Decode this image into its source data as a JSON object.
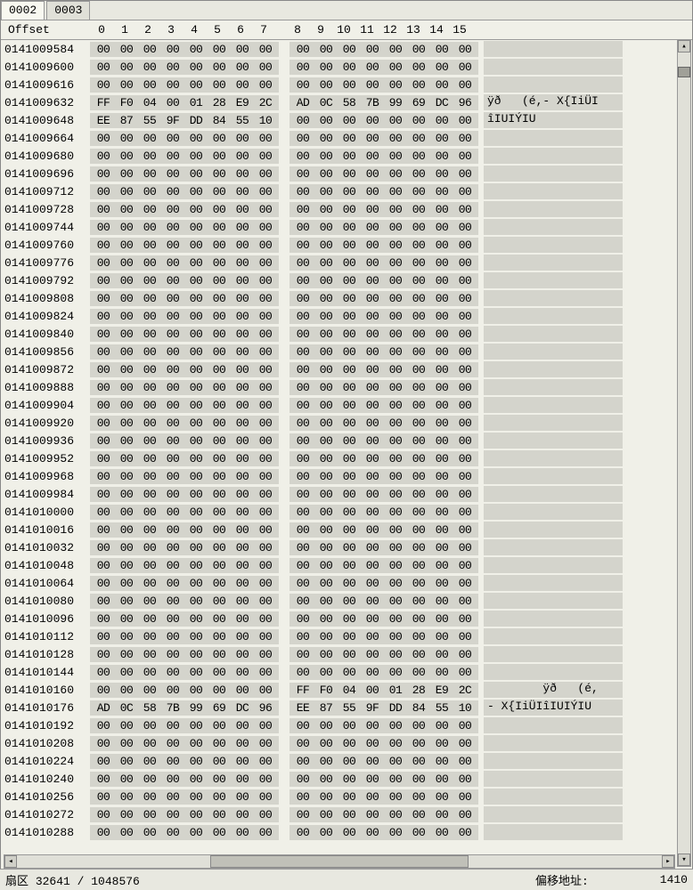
{
  "tabs": [
    {
      "label": "0002",
      "active": true
    },
    {
      "label": "0003",
      "active": false
    }
  ],
  "offset_header": "Offset",
  "column_headers": [
    "0",
    "1",
    "2",
    "3",
    "4",
    "5",
    "6",
    "7",
    "8",
    "9",
    "10",
    "11",
    "12",
    "13",
    "14",
    "15"
  ],
  "colors": {
    "background": "#f0f0e8",
    "hex_bg": "#d4d4cc",
    "text": "#000000",
    "border": "#999999"
  },
  "rows": [
    {
      "offset": "0141009584",
      "bytes": [
        "00",
        "00",
        "00",
        "00",
        "00",
        "00",
        "00",
        "00",
        "00",
        "00",
        "00",
        "00",
        "00",
        "00",
        "00",
        "00"
      ],
      "ascii": ""
    },
    {
      "offset": "0141009600",
      "bytes": [
        "00",
        "00",
        "00",
        "00",
        "00",
        "00",
        "00",
        "00",
        "00",
        "00",
        "00",
        "00",
        "00",
        "00",
        "00",
        "00"
      ],
      "ascii": ""
    },
    {
      "offset": "0141009616",
      "bytes": [
        "00",
        "00",
        "00",
        "00",
        "00",
        "00",
        "00",
        "00",
        "00",
        "00",
        "00",
        "00",
        "00",
        "00",
        "00",
        "00"
      ],
      "ascii": ""
    },
    {
      "offset": "0141009632",
      "bytes": [
        "FF",
        "F0",
        "04",
        "00",
        "01",
        "28",
        "E9",
        "2C",
        "AD",
        "0C",
        "58",
        "7B",
        "99",
        "69",
        "DC",
        "96"
      ],
      "ascii": "ÿð   (é,- X{IiÜI"
    },
    {
      "offset": "0141009648",
      "bytes": [
        "EE",
        "87",
        "55",
        "9F",
        "DD",
        "84",
        "55",
        "10",
        "00",
        "00",
        "00",
        "00",
        "00",
        "00",
        "00",
        "00"
      ],
      "ascii": "îIUIÝIU"
    },
    {
      "offset": "0141009664",
      "bytes": [
        "00",
        "00",
        "00",
        "00",
        "00",
        "00",
        "00",
        "00",
        "00",
        "00",
        "00",
        "00",
        "00",
        "00",
        "00",
        "00"
      ],
      "ascii": ""
    },
    {
      "offset": "0141009680",
      "bytes": [
        "00",
        "00",
        "00",
        "00",
        "00",
        "00",
        "00",
        "00",
        "00",
        "00",
        "00",
        "00",
        "00",
        "00",
        "00",
        "00"
      ],
      "ascii": ""
    },
    {
      "offset": "0141009696",
      "bytes": [
        "00",
        "00",
        "00",
        "00",
        "00",
        "00",
        "00",
        "00",
        "00",
        "00",
        "00",
        "00",
        "00",
        "00",
        "00",
        "00"
      ],
      "ascii": ""
    },
    {
      "offset": "0141009712",
      "bytes": [
        "00",
        "00",
        "00",
        "00",
        "00",
        "00",
        "00",
        "00",
        "00",
        "00",
        "00",
        "00",
        "00",
        "00",
        "00",
        "00"
      ],
      "ascii": ""
    },
    {
      "offset": "0141009728",
      "bytes": [
        "00",
        "00",
        "00",
        "00",
        "00",
        "00",
        "00",
        "00",
        "00",
        "00",
        "00",
        "00",
        "00",
        "00",
        "00",
        "00"
      ],
      "ascii": ""
    },
    {
      "offset": "0141009744",
      "bytes": [
        "00",
        "00",
        "00",
        "00",
        "00",
        "00",
        "00",
        "00",
        "00",
        "00",
        "00",
        "00",
        "00",
        "00",
        "00",
        "00"
      ],
      "ascii": ""
    },
    {
      "offset": "0141009760",
      "bytes": [
        "00",
        "00",
        "00",
        "00",
        "00",
        "00",
        "00",
        "00",
        "00",
        "00",
        "00",
        "00",
        "00",
        "00",
        "00",
        "00"
      ],
      "ascii": ""
    },
    {
      "offset": "0141009776",
      "bytes": [
        "00",
        "00",
        "00",
        "00",
        "00",
        "00",
        "00",
        "00",
        "00",
        "00",
        "00",
        "00",
        "00",
        "00",
        "00",
        "00"
      ],
      "ascii": ""
    },
    {
      "offset": "0141009792",
      "bytes": [
        "00",
        "00",
        "00",
        "00",
        "00",
        "00",
        "00",
        "00",
        "00",
        "00",
        "00",
        "00",
        "00",
        "00",
        "00",
        "00"
      ],
      "ascii": ""
    },
    {
      "offset": "0141009808",
      "bytes": [
        "00",
        "00",
        "00",
        "00",
        "00",
        "00",
        "00",
        "00",
        "00",
        "00",
        "00",
        "00",
        "00",
        "00",
        "00",
        "00"
      ],
      "ascii": ""
    },
    {
      "offset": "0141009824",
      "bytes": [
        "00",
        "00",
        "00",
        "00",
        "00",
        "00",
        "00",
        "00",
        "00",
        "00",
        "00",
        "00",
        "00",
        "00",
        "00",
        "00"
      ],
      "ascii": ""
    },
    {
      "offset": "0141009840",
      "bytes": [
        "00",
        "00",
        "00",
        "00",
        "00",
        "00",
        "00",
        "00",
        "00",
        "00",
        "00",
        "00",
        "00",
        "00",
        "00",
        "00"
      ],
      "ascii": ""
    },
    {
      "offset": "0141009856",
      "bytes": [
        "00",
        "00",
        "00",
        "00",
        "00",
        "00",
        "00",
        "00",
        "00",
        "00",
        "00",
        "00",
        "00",
        "00",
        "00",
        "00"
      ],
      "ascii": ""
    },
    {
      "offset": "0141009872",
      "bytes": [
        "00",
        "00",
        "00",
        "00",
        "00",
        "00",
        "00",
        "00",
        "00",
        "00",
        "00",
        "00",
        "00",
        "00",
        "00",
        "00"
      ],
      "ascii": ""
    },
    {
      "offset": "0141009888",
      "bytes": [
        "00",
        "00",
        "00",
        "00",
        "00",
        "00",
        "00",
        "00",
        "00",
        "00",
        "00",
        "00",
        "00",
        "00",
        "00",
        "00"
      ],
      "ascii": ""
    },
    {
      "offset": "0141009904",
      "bytes": [
        "00",
        "00",
        "00",
        "00",
        "00",
        "00",
        "00",
        "00",
        "00",
        "00",
        "00",
        "00",
        "00",
        "00",
        "00",
        "00"
      ],
      "ascii": ""
    },
    {
      "offset": "0141009920",
      "bytes": [
        "00",
        "00",
        "00",
        "00",
        "00",
        "00",
        "00",
        "00",
        "00",
        "00",
        "00",
        "00",
        "00",
        "00",
        "00",
        "00"
      ],
      "ascii": ""
    },
    {
      "offset": "0141009936",
      "bytes": [
        "00",
        "00",
        "00",
        "00",
        "00",
        "00",
        "00",
        "00",
        "00",
        "00",
        "00",
        "00",
        "00",
        "00",
        "00",
        "00"
      ],
      "ascii": ""
    },
    {
      "offset": "0141009952",
      "bytes": [
        "00",
        "00",
        "00",
        "00",
        "00",
        "00",
        "00",
        "00",
        "00",
        "00",
        "00",
        "00",
        "00",
        "00",
        "00",
        "00"
      ],
      "ascii": ""
    },
    {
      "offset": "0141009968",
      "bytes": [
        "00",
        "00",
        "00",
        "00",
        "00",
        "00",
        "00",
        "00",
        "00",
        "00",
        "00",
        "00",
        "00",
        "00",
        "00",
        "00"
      ],
      "ascii": ""
    },
    {
      "offset": "0141009984",
      "bytes": [
        "00",
        "00",
        "00",
        "00",
        "00",
        "00",
        "00",
        "00",
        "00",
        "00",
        "00",
        "00",
        "00",
        "00",
        "00",
        "00"
      ],
      "ascii": ""
    },
    {
      "offset": "0141010000",
      "bytes": [
        "00",
        "00",
        "00",
        "00",
        "00",
        "00",
        "00",
        "00",
        "00",
        "00",
        "00",
        "00",
        "00",
        "00",
        "00",
        "00"
      ],
      "ascii": ""
    },
    {
      "offset": "0141010016",
      "bytes": [
        "00",
        "00",
        "00",
        "00",
        "00",
        "00",
        "00",
        "00",
        "00",
        "00",
        "00",
        "00",
        "00",
        "00",
        "00",
        "00"
      ],
      "ascii": ""
    },
    {
      "offset": "0141010032",
      "bytes": [
        "00",
        "00",
        "00",
        "00",
        "00",
        "00",
        "00",
        "00",
        "00",
        "00",
        "00",
        "00",
        "00",
        "00",
        "00",
        "00"
      ],
      "ascii": ""
    },
    {
      "offset": "0141010048",
      "bytes": [
        "00",
        "00",
        "00",
        "00",
        "00",
        "00",
        "00",
        "00",
        "00",
        "00",
        "00",
        "00",
        "00",
        "00",
        "00",
        "00"
      ],
      "ascii": ""
    },
    {
      "offset": "0141010064",
      "bytes": [
        "00",
        "00",
        "00",
        "00",
        "00",
        "00",
        "00",
        "00",
        "00",
        "00",
        "00",
        "00",
        "00",
        "00",
        "00",
        "00"
      ],
      "ascii": ""
    },
    {
      "offset": "0141010080",
      "bytes": [
        "00",
        "00",
        "00",
        "00",
        "00",
        "00",
        "00",
        "00",
        "00",
        "00",
        "00",
        "00",
        "00",
        "00",
        "00",
        "00"
      ],
      "ascii": ""
    },
    {
      "offset": "0141010096",
      "bytes": [
        "00",
        "00",
        "00",
        "00",
        "00",
        "00",
        "00",
        "00",
        "00",
        "00",
        "00",
        "00",
        "00",
        "00",
        "00",
        "00"
      ],
      "ascii": ""
    },
    {
      "offset": "0141010112",
      "bytes": [
        "00",
        "00",
        "00",
        "00",
        "00",
        "00",
        "00",
        "00",
        "00",
        "00",
        "00",
        "00",
        "00",
        "00",
        "00",
        "00"
      ],
      "ascii": ""
    },
    {
      "offset": "0141010128",
      "bytes": [
        "00",
        "00",
        "00",
        "00",
        "00",
        "00",
        "00",
        "00",
        "00",
        "00",
        "00",
        "00",
        "00",
        "00",
        "00",
        "00"
      ],
      "ascii": ""
    },
    {
      "offset": "0141010144",
      "bytes": [
        "00",
        "00",
        "00",
        "00",
        "00",
        "00",
        "00",
        "00",
        "00",
        "00",
        "00",
        "00",
        "00",
        "00",
        "00",
        "00"
      ],
      "ascii": ""
    },
    {
      "offset": "0141010160",
      "bytes": [
        "00",
        "00",
        "00",
        "00",
        "00",
        "00",
        "00",
        "00",
        "FF",
        "F0",
        "04",
        "00",
        "01",
        "28",
        "E9",
        "2C"
      ],
      "ascii": "        ÿð   (é,"
    },
    {
      "offset": "0141010176",
      "bytes": [
        "AD",
        "0C",
        "58",
        "7B",
        "99",
        "69",
        "DC",
        "96",
        "EE",
        "87",
        "55",
        "9F",
        "DD",
        "84",
        "55",
        "10"
      ],
      "ascii": "- X{IiÜIîIUIÝIU"
    },
    {
      "offset": "0141010192",
      "bytes": [
        "00",
        "00",
        "00",
        "00",
        "00",
        "00",
        "00",
        "00",
        "00",
        "00",
        "00",
        "00",
        "00",
        "00",
        "00",
        "00"
      ],
      "ascii": ""
    },
    {
      "offset": "0141010208",
      "bytes": [
        "00",
        "00",
        "00",
        "00",
        "00",
        "00",
        "00",
        "00",
        "00",
        "00",
        "00",
        "00",
        "00",
        "00",
        "00",
        "00"
      ],
      "ascii": ""
    },
    {
      "offset": "0141010224",
      "bytes": [
        "00",
        "00",
        "00",
        "00",
        "00",
        "00",
        "00",
        "00",
        "00",
        "00",
        "00",
        "00",
        "00",
        "00",
        "00",
        "00"
      ],
      "ascii": ""
    },
    {
      "offset": "0141010240",
      "bytes": [
        "00",
        "00",
        "00",
        "00",
        "00",
        "00",
        "00",
        "00",
        "00",
        "00",
        "00",
        "00",
        "00",
        "00",
        "00",
        "00"
      ],
      "ascii": ""
    },
    {
      "offset": "0141010256",
      "bytes": [
        "00",
        "00",
        "00",
        "00",
        "00",
        "00",
        "00",
        "00",
        "00",
        "00",
        "00",
        "00",
        "00",
        "00",
        "00",
        "00"
      ],
      "ascii": ""
    },
    {
      "offset": "0141010272",
      "bytes": [
        "00",
        "00",
        "00",
        "00",
        "00",
        "00",
        "00",
        "00",
        "00",
        "00",
        "00",
        "00",
        "00",
        "00",
        "00",
        "00"
      ],
      "ascii": ""
    },
    {
      "offset": "0141010288",
      "bytes": [
        "00",
        "00",
        "00",
        "00",
        "00",
        "00",
        "00",
        "00",
        "00",
        "00",
        "00",
        "00",
        "00",
        "00",
        "00",
        "00"
      ],
      "ascii": ""
    }
  ],
  "statusbar": {
    "sector_label": "扇区",
    "sector_value": "32641 / 1048576",
    "offset_label": "偏移地址:",
    "offset_value": "1410"
  },
  "scroll": {
    "up_glyph": "▴",
    "down_glyph": "▾"
  }
}
